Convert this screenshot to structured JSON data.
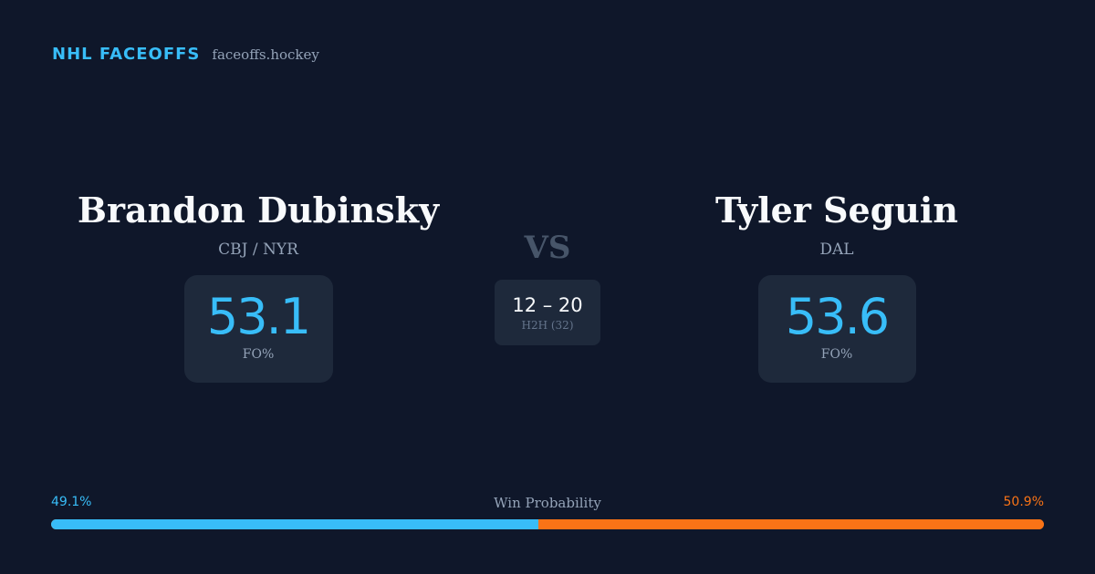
{
  "brand": {
    "title": "NHL FACEOFFS",
    "site": "faceoffs.hockey"
  },
  "players": [
    {
      "name": "Brandon Dubinsky",
      "team": "CBJ / NYR",
      "fo_pct": "53.1",
      "fo_label": "FO%"
    },
    {
      "name": "Tyler Seguin",
      "team": "DAL",
      "fo_pct": "53.6",
      "fo_label": "FO%"
    }
  ],
  "versus": {
    "label": "VS",
    "record": "12 – 20",
    "h2h_label": "H2H (32)"
  },
  "win_probability": {
    "title": "Win Probability",
    "left_label": "49.1%",
    "right_label": "50.9%",
    "left_value": 49.1,
    "right_value": 50.9,
    "left_color": "#38bdf8",
    "right_color": "#f97316"
  }
}
